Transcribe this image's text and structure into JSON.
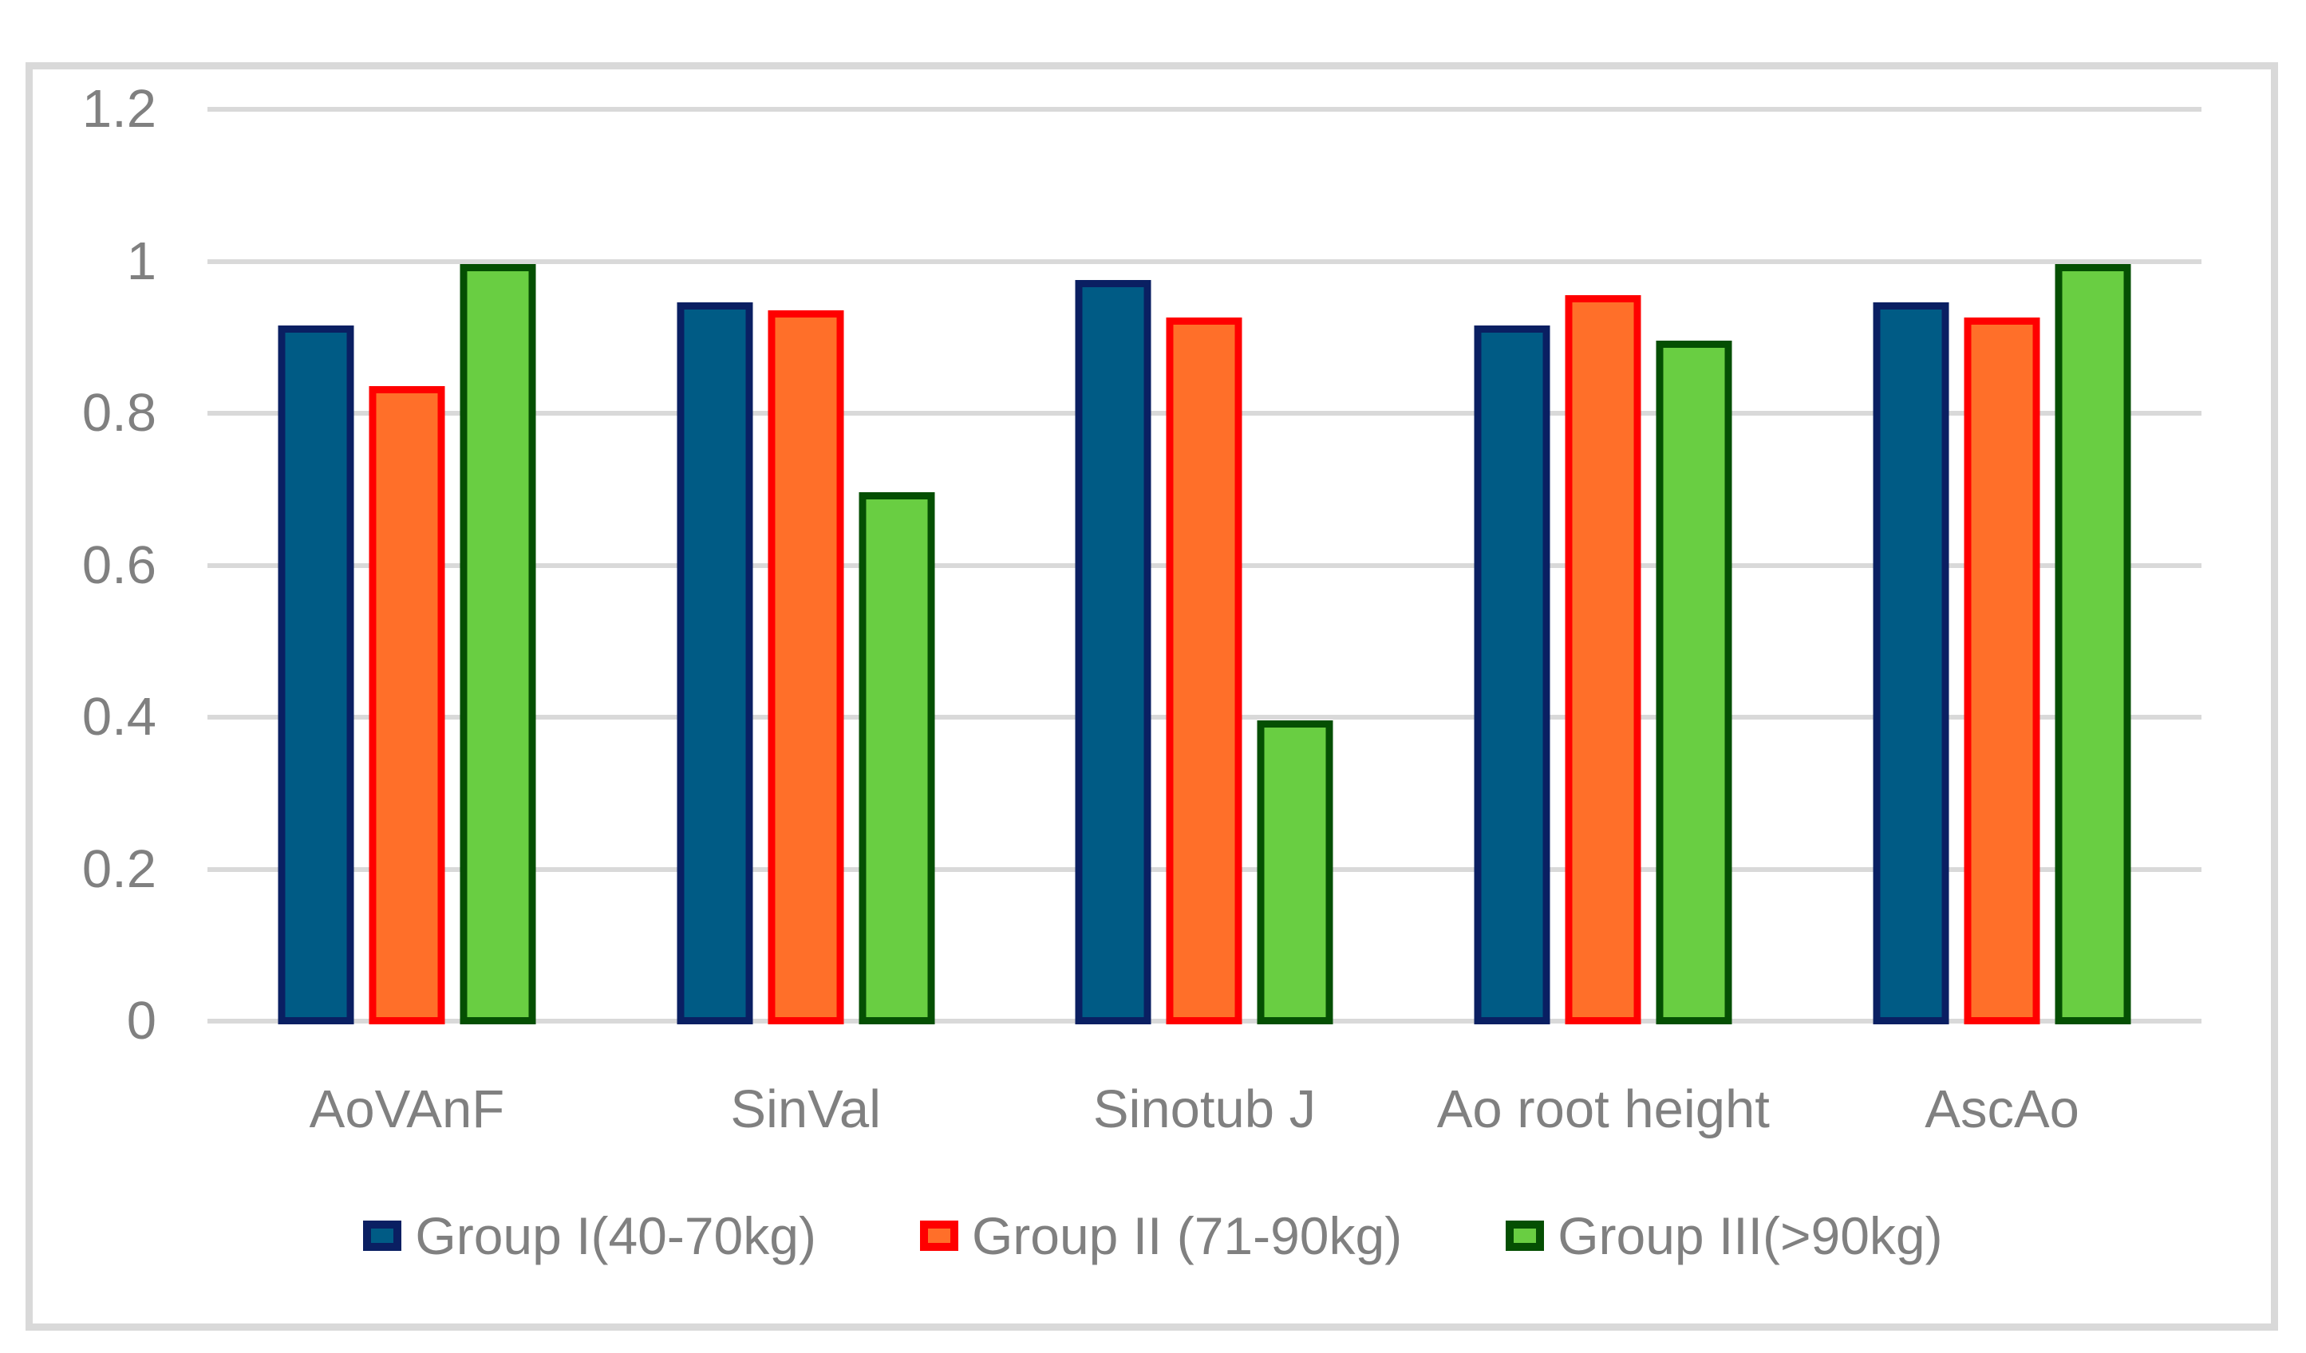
{
  "chart_data": {
    "type": "bar",
    "title": "",
    "xlabel": "",
    "ylabel": "",
    "categories": [
      "AoVAnF",
      "SinVal",
      "Sinotub J",
      "Ao root height",
      "AscAo"
    ],
    "series": [
      {
        "name": "Group I(40-70kg)",
        "values": [
          0.92,
          0.95,
          0.98,
          0.92,
          0.95
        ],
        "fill": "#005B85",
        "border": "#0A1F62"
      },
      {
        "name": "Group II (71-90kg)",
        "values": [
          0.84,
          0.94,
          0.93,
          0.96,
          0.93
        ],
        "fill": "#FF6F29",
        "border": "#FF0000"
      },
      {
        "name": "Group III(>90kg)",
        "values": [
          1.0,
          0.7,
          0.4,
          0.9,
          1.0
        ],
        "fill": "#69CE42",
        "border": "#054F03"
      }
    ],
    "y_ticks": [
      "1.2",
      "1",
      "0.8",
      "0.6",
      "0.4",
      "0.2",
      "0"
    ],
    "y_tick_values": [
      1.2,
      1.0,
      0.8,
      0.6,
      0.4,
      0.2,
      0
    ],
    "ylim": [
      0,
      1.2
    ],
    "grid": true,
    "legend_position": "bottom",
    "colors": {
      "gridline": "#D9D9D9",
      "chart_border": "#D9D9D9",
      "text": "#808080",
      "background": "#FFFFFF"
    }
  }
}
